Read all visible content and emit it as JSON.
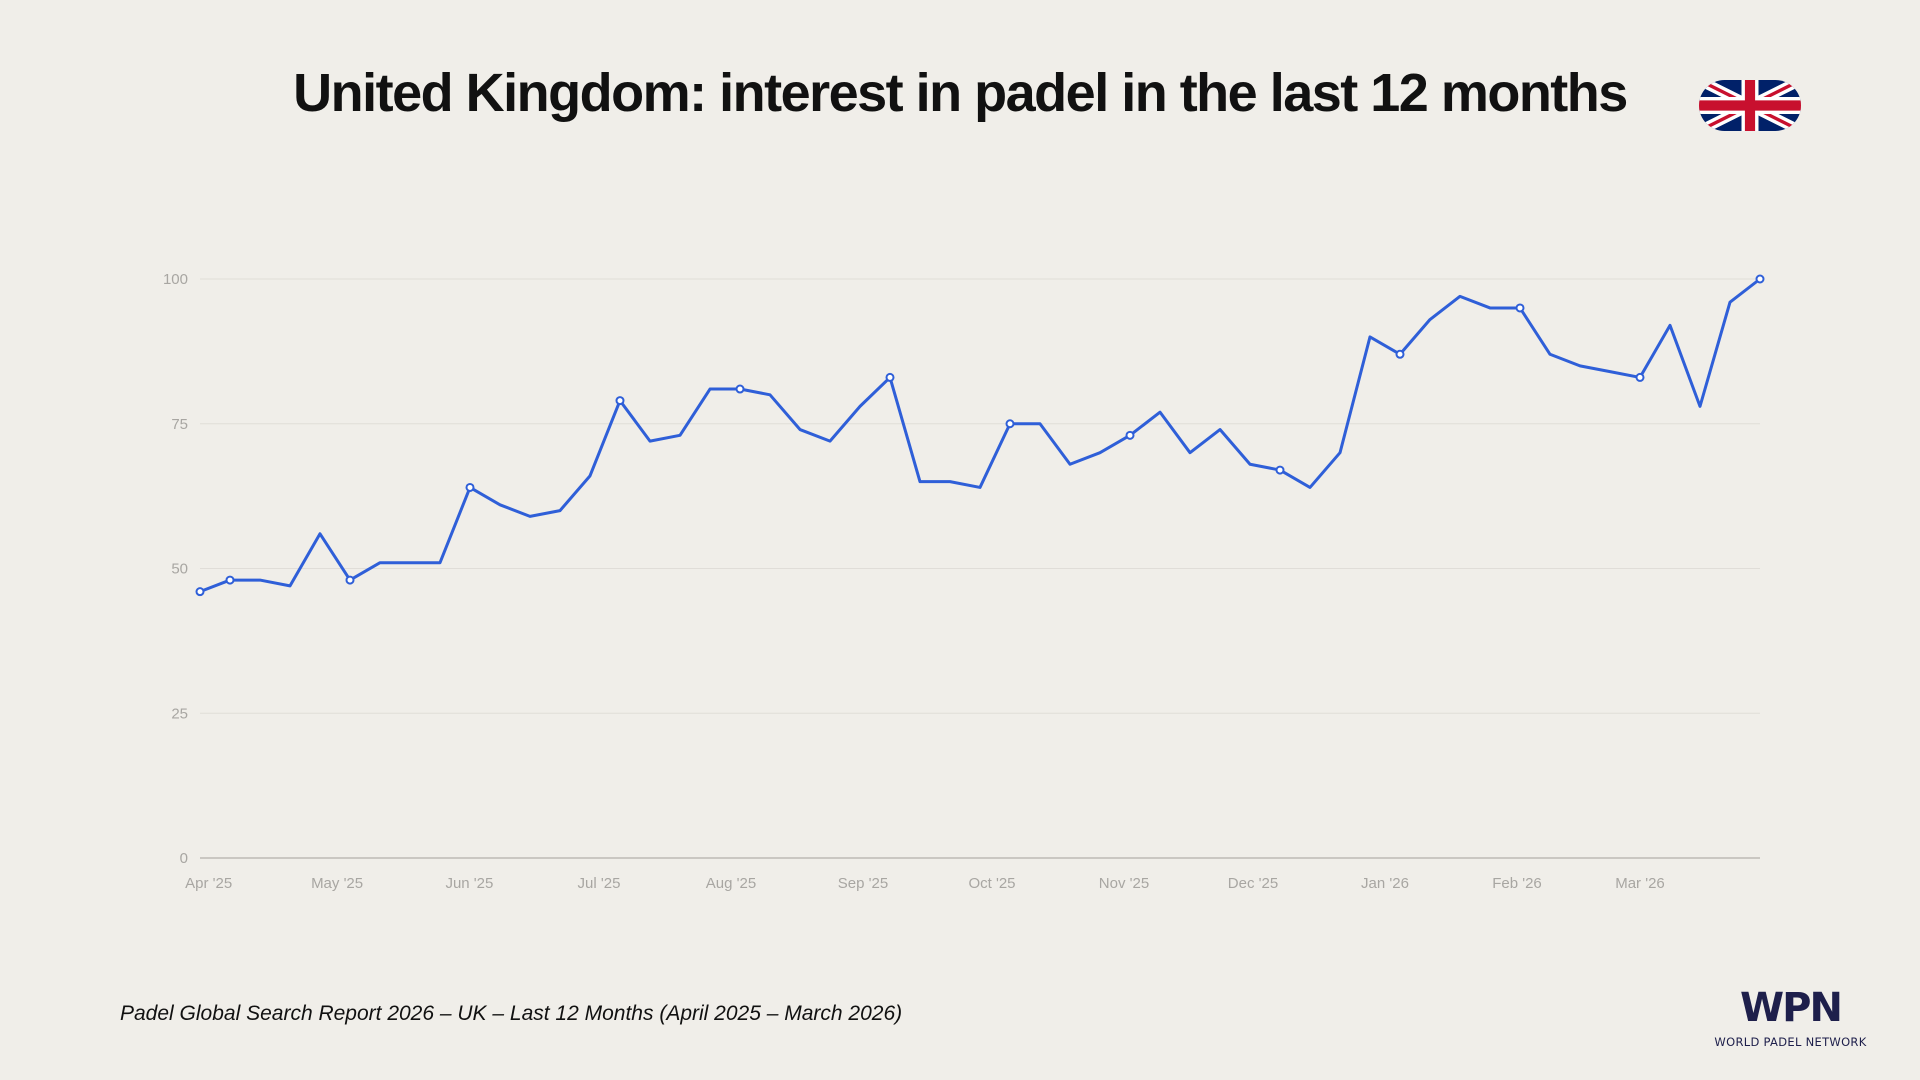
{
  "title": "United Kingdom: interest in padel in the last 12 months",
  "footer": "Padel Global Search Report 2026 – UK – Last 12 Months (April 2025 – March 2026)",
  "logo": {
    "mark": "WPN",
    "text": "WORLD PADEL NETWORK"
  },
  "flag_icon": "united-kingdom-flag",
  "colors": {
    "line": "#2f5fd8",
    "background": "#f0eee9",
    "grid": "#e0ddd8",
    "logo": "#1e1f4b"
  },
  "chart_data": {
    "type": "line",
    "title": "United Kingdom: interest in padel in the last 12 months",
    "xlabel": "",
    "ylabel": "",
    "ylim": [
      0,
      100
    ],
    "yticks": [
      0,
      25,
      50,
      75,
      100
    ],
    "xtick_labels": [
      "Apr '25",
      "May '25",
      "Jun '25",
      "Jul '25",
      "Aug '25",
      "Sep '25",
      "Oct '25",
      "Nov '25",
      "Dec '25",
      "Jan '26",
      "Feb '26",
      "Mar '26"
    ],
    "grid": true,
    "series": [
      {
        "values": [
          46,
          48,
          48,
          47,
          56,
          48,
          51,
          51,
          51,
          64,
          61,
          59,
          60,
          66,
          79,
          72,
          73,
          81,
          81,
          80,
          74,
          72,
          78,
          83,
          65,
          65,
          64,
          75,
          75,
          68,
          70,
          73,
          77,
          70,
          74,
          68,
          67,
          64,
          70,
          90,
          87,
          93,
          97,
          95,
          95,
          87,
          85,
          84,
          83,
          92,
          78,
          96,
          100
        ],
        "marked_points": [
          0,
          1,
          5,
          9,
          14,
          18,
          23,
          27,
          31,
          36,
          40,
          44,
          48,
          52
        ]
      }
    ]
  }
}
